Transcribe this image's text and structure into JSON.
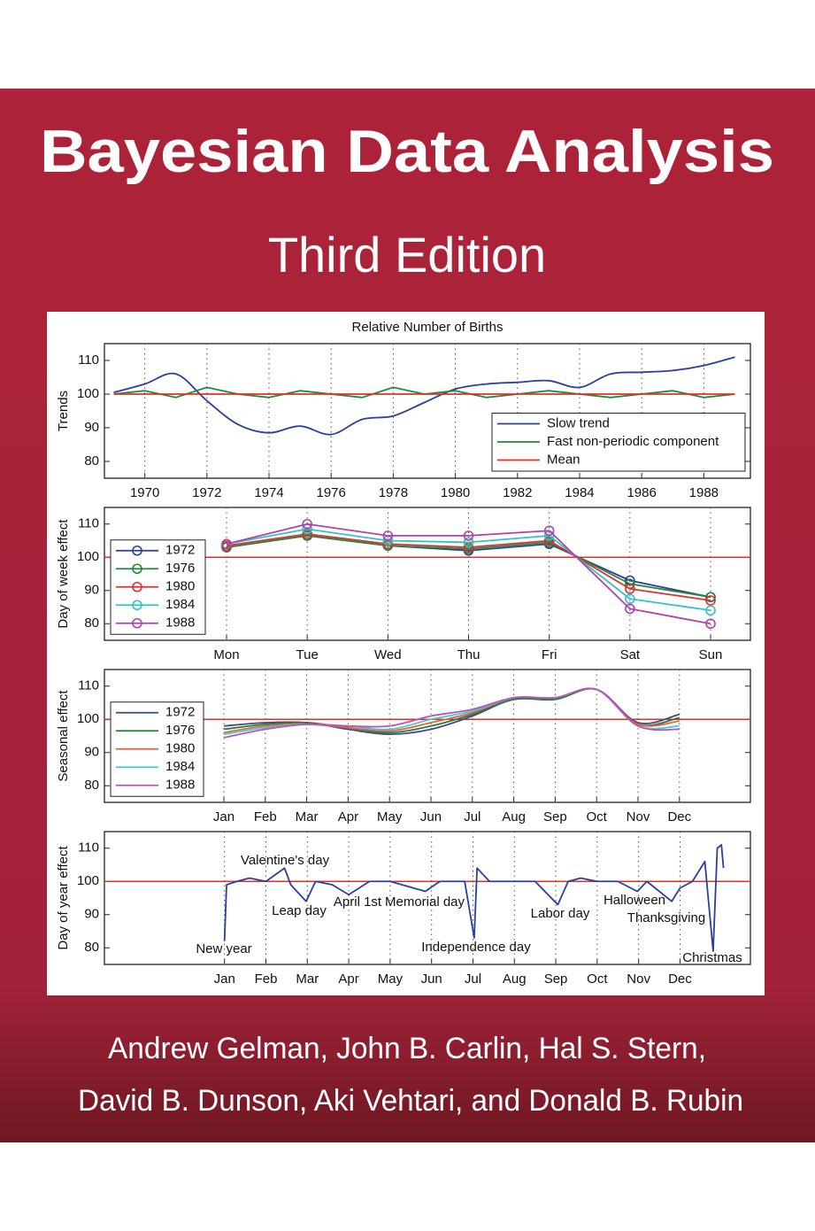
{
  "cover": {
    "title": "Bayesian Data Analysis",
    "subtitle": "Third Edition",
    "authors": [
      "Andrew Gelman, John B. Carlin, Hal S. Stern,",
      "David B. Dunson, Aki Vehtari, and Donald B. Rubin"
    ]
  },
  "chart_data": [
    {
      "type": "line",
      "title": "Relative Number of Births",
      "ylabel": "Trends",
      "x": [
        1969,
        1970,
        1971,
        1972,
        1973,
        1974,
        1975,
        1976,
        1977,
        1978,
        1979,
        1980,
        1981,
        1982,
        1983,
        1984,
        1985,
        1986,
        1987,
        1988,
        1989
      ],
      "xlim": [
        1968.7,
        1989.5
      ],
      "xticks": [
        1970,
        1972,
        1974,
        1976,
        1978,
        1980,
        1982,
        1984,
        1986,
        1988
      ],
      "ylim": [
        75,
        115
      ],
      "yticks": [
        80,
        90,
        100,
        110
      ],
      "grid": true,
      "legend": "lower right",
      "series": [
        {
          "name": "Slow trend",
          "color": "#2b3f9e",
          "smooth": true,
          "values": [
            100.5,
            103,
            106,
            98,
            91,
            88.5,
            90.5,
            88,
            92.5,
            93.5,
            97.5,
            101.5,
            103,
            103.5,
            104,
            102,
            106,
            106.5,
            107,
            108.5,
            111
          ]
        },
        {
          "name": "Fast non-periodic component",
          "color": "#1f8a3a",
          "values": [
            100,
            101,
            99,
            102,
            100,
            99,
            101,
            100,
            99,
            102,
            100,
            101,
            99,
            100,
            101,
            100,
            99,
            100,
            101,
            99,
            100
          ]
        },
        {
          "name": "Mean",
          "color": "#e0302a",
          "values": [
            100,
            100,
            100,
            100,
            100,
            100,
            100,
            100,
            100,
            100,
            100,
            100,
            100,
            100,
            100,
            100,
            100,
            100,
            100,
            100,
            100
          ]
        }
      ]
    },
    {
      "type": "line",
      "ylabel": "Day of week effect",
      "markers": true,
      "categories": [
        "Mon",
        "Tue",
        "Wed",
        "Thu",
        "Fri",
        "Sat",
        "Sun"
      ],
      "ylim": [
        75,
        115
      ],
      "yticks": [
        80,
        90,
        100,
        110
      ],
      "grid": true,
      "legend": "center left",
      "hline": 100,
      "hline_color": "#e0302a",
      "series": [
        {
          "name": "1972",
          "color": "#2b3f9e",
          "values": [
            103,
            106.5,
            103.5,
            102,
            104,
            93,
            88
          ]
        },
        {
          "name": "1976",
          "color": "#1f8a3a",
          "values": [
            103,
            106.5,
            103.5,
            102.5,
            104.5,
            92,
            88
          ]
        },
        {
          "name": "1980",
          "color": "#e0302a",
          "values": [
            103.5,
            107,
            104,
            103,
            105,
            90.5,
            87
          ]
        },
        {
          "name": "1984",
          "color": "#2ec4c4",
          "values": [
            104,
            108.5,
            105,
            104.5,
            106.5,
            87.5,
            84
          ]
        },
        {
          "name": "1988",
          "color": "#b040b0",
          "values": [
            104,
            110,
            106.5,
            106.5,
            108,
            84.5,
            80
          ]
        }
      ]
    },
    {
      "type": "line",
      "ylabel": "Seasonal effect",
      "categories": [
        "Jan",
        "Feb",
        "Mar",
        "Apr",
        "May",
        "Jun",
        "Jul",
        "Aug",
        "Sep",
        "Oct",
        "Nov",
        "Dec"
      ],
      "ylim": [
        75,
        115
      ],
      "yticks": [
        80,
        90,
        100,
        110
      ],
      "grid": true,
      "legend": "center left",
      "hline": 100,
      "hline_color": "#e0302a",
      "series": [
        {
          "name": "1972",
          "color": "#3b4a8a",
          "smooth": true,
          "values": [
            98,
            99,
            99,
            97,
            95.5,
            97,
            101,
            106,
            106,
            109,
            99,
            101.5
          ]
        },
        {
          "name": "1976",
          "color": "#2a7a3a",
          "smooth": true,
          "values": [
            97,
            98.5,
            99,
            97.5,
            96,
            98,
            101.5,
            106,
            106,
            109,
            98.5,
            100.5
          ]
        },
        {
          "name": "1980",
          "color": "#e8603a",
          "smooth": true,
          "values": [
            96,
            98,
            98.5,
            97.5,
            96.5,
            99,
            102,
            106.5,
            106.5,
            109,
            98.5,
            99.5
          ]
        },
        {
          "name": "1984",
          "color": "#3ad0d0",
          "smooth": true,
          "values": [
            95.5,
            97.5,
            98.5,
            98,
            97,
            100,
            102.5,
            106.5,
            106.5,
            109,
            98,
            98
          ]
        },
        {
          "name": "1988",
          "color": "#c050c0",
          "smooth": true,
          "values": [
            94.5,
            97,
            98.5,
            98,
            98,
            101,
            103,
            106.5,
            106.5,
            109,
            98,
            97
          ]
        }
      ]
    },
    {
      "type": "line",
      "ylabel": "Day of year effect",
      "x": [
        1,
        1.05,
        1.3,
        1.6,
        2,
        2.45,
        2.6,
        2.97,
        3.2,
        3.6,
        4.0,
        4.5,
        5.0,
        5.85,
        6.2,
        6.8,
        7.03,
        7.1,
        7.4,
        8,
        8.5,
        9.05,
        9.3,
        9.6,
        10,
        10.5,
        10.97,
        11.2,
        11.8,
        12,
        12.3,
        12.6,
        12.8,
        12.9,
        13.0,
        13.05
      ],
      "xlim": [
        -1.9,
        13.7
      ],
      "xticks": [
        {
          "value": 1,
          "label": "Jan"
        },
        {
          "value": 2,
          "label": "Feb"
        },
        {
          "value": 3,
          "label": "Mar"
        },
        {
          "value": 4,
          "label": "Apr"
        },
        {
          "value": 5,
          "label": "May"
        },
        {
          "value": 6,
          "label": "Jun"
        },
        {
          "value": 7,
          "label": "Jul"
        },
        {
          "value": 8,
          "label": "Aug"
        },
        {
          "value": 9,
          "label": "Sep"
        },
        {
          "value": 10,
          "label": "Oct"
        },
        {
          "value": 11,
          "label": "Nov"
        },
        {
          "value": 12,
          "label": "Dec"
        }
      ],
      "ylim": [
        75,
        115
      ],
      "yticks": [
        80,
        90,
        100,
        110
      ],
      "grid": true,
      "hline": 100,
      "hline_color": "#e0302a",
      "series": [
        {
          "color": "#2b3f9e",
          "values": [
            82,
            99,
            100,
            101,
            100,
            104,
            99,
            94,
            100,
            99,
            96,
            100,
            100,
            97,
            100,
            100,
            83,
            104,
            100,
            100,
            100,
            93,
            100,
            101,
            100,
            100,
            97,
            100,
            94,
            98,
            100,
            106,
            79,
            110,
            111,
            104
          ]
        }
      ],
      "annotations": [
        "New year",
        "Valentine's day",
        "Leap day",
        "April 1st",
        "Memorial day",
        "Independence day",
        "Labor day",
        "Halloween",
        "Thanksgiving",
        "Christmas"
      ]
    }
  ]
}
